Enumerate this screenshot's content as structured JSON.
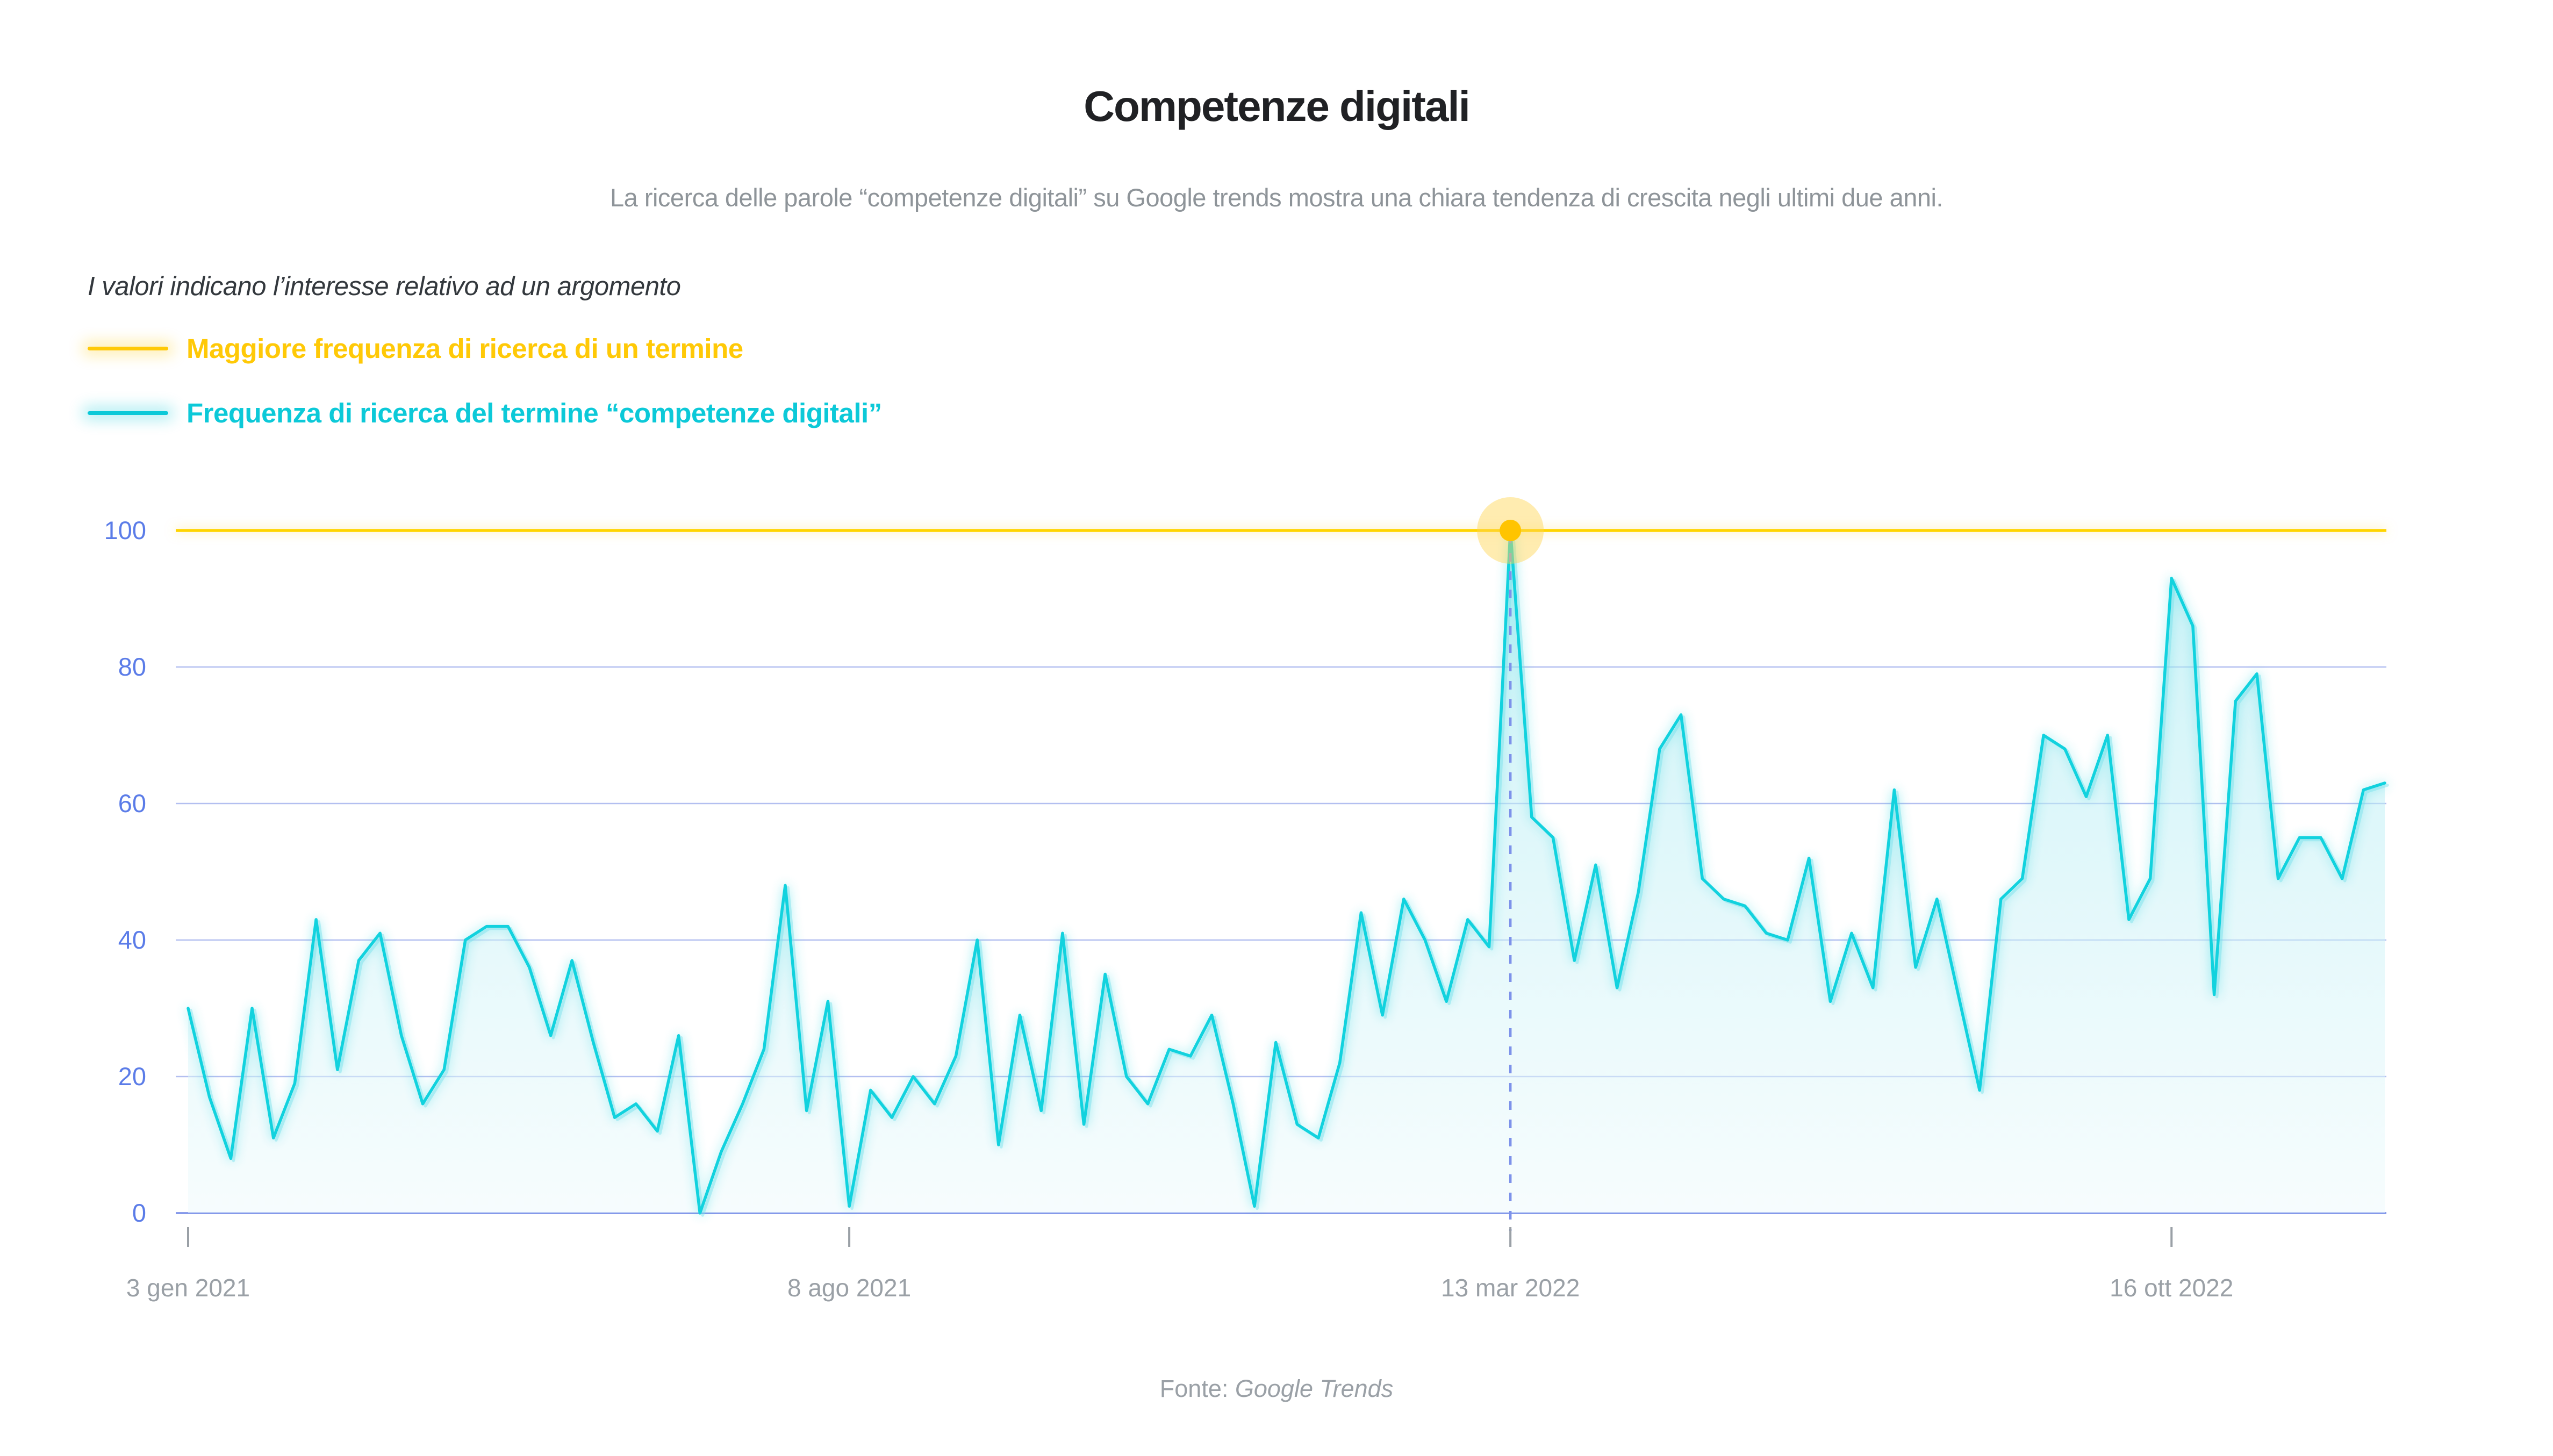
{
  "title": "Competenze digitali",
  "subtitle": "La ricerca delle parole “competenze digitali” su Google trends mostra una chiara tendenza di crescita negli ultimi due anni.",
  "legend": {
    "note": "I valori indicano l’interesse relativo ad un argomento",
    "items": [
      {
        "label": "Maggiore frequenza di ricerca di un termine",
        "color": "#FFC907",
        "swatch": "yellow-line"
      },
      {
        "label": "Frequenza di ricerca del termine “competenze digitali”",
        "color": "#0CC9D8",
        "swatch": "cyan-line"
      }
    ]
  },
  "footer": {
    "prefix": "Fonte:",
    "source": "Google Trends"
  },
  "colors": {
    "line_cyan": "#12D2DE",
    "line_yellow": "#FFD400",
    "grid": "#B3BFF0",
    "axis_baseline": "#7B90E8",
    "dashed_guide": "#7D92EA",
    "y_label": "#5B7CE8",
    "x_label": "#9AA0A6",
    "tick": "#9AA0A6",
    "marker_core": "#FFC400",
    "marker_halo": "#FFD54F",
    "area_top": "#9FE8F0",
    "area_bottom": "#EEFAFC"
  },
  "chart_data": {
    "type": "area",
    "title": "Competenze digitali",
    "xlabel": "",
    "ylabel": "",
    "ylim": [
      0,
      100
    ],
    "y_ticks": [
      0,
      20,
      40,
      60,
      80,
      100
    ],
    "grid": true,
    "legend_position": "top-left",
    "x_frequency": "weekly",
    "x_tick_labels": [
      "3 gen 2021",
      "8 ago 2021",
      "13 mar 2022",
      "16 ott 2022"
    ],
    "x_tick_indices": [
      0,
      31,
      62,
      93
    ],
    "reference_line": {
      "name": "Maggiore frequenza di ricerca di un termine",
      "value": 100
    },
    "peak_marker": {
      "week_index": 62,
      "value": 100,
      "date": "13 mar 2022"
    },
    "series": [
      {
        "name": "Frequenza di ricerca del termine “competenze digitali”",
        "values": [
          30,
          17,
          8,
          30,
          11,
          19,
          43,
          21,
          37,
          41,
          26,
          16,
          21,
          40,
          42,
          42,
          36,
          26,
          37,
          25,
          14,
          16,
          12,
          26,
          0,
          9,
          16,
          24,
          48,
          15,
          31,
          1,
          18,
          14,
          20,
          16,
          23,
          40,
          10,
          29,
          15,
          41,
          13,
          35,
          20,
          16,
          24,
          23,
          29,
          16,
          1,
          25,
          13,
          11,
          22,
          44,
          29,
          46,
          40,
          31,
          43,
          39,
          100,
          58,
          55,
          37,
          51,
          33,
          47,
          68,
          73,
          49,
          46,
          45,
          41,
          40,
          52,
          31,
          41,
          33,
          62,
          36,
          46,
          32,
          18,
          46,
          49,
          70,
          68,
          61,
          70,
          43,
          49,
          93,
          86,
          32,
          75,
          79,
          49,
          55,
          55,
          49,
          62,
          63
        ]
      }
    ]
  }
}
